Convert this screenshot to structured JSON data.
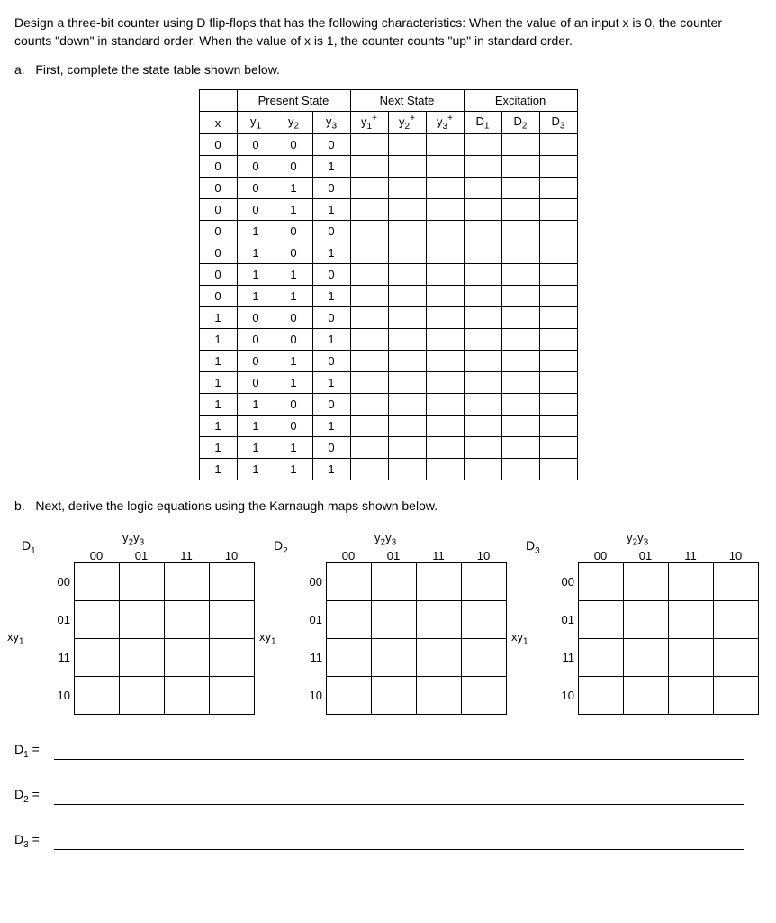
{
  "problem": {
    "text": "Design a three-bit counter using D flip-flops that has the following characteristics: When the value of an input x is 0, the counter counts \"down\" in standard order. When the value of x is 1, the counter counts \"up\" in standard order."
  },
  "partA": {
    "label": "a.",
    "text": "First, complete the state table shown below."
  },
  "stateTable": {
    "groupHeaders": [
      "",
      "Present State",
      "Next State",
      "Excitation"
    ],
    "columns": [
      "x",
      "y₁",
      "y₂",
      "y₃",
      "y₁⁺",
      "y₂⁺",
      "y₃⁺",
      "D₁",
      "D₂",
      "D₃"
    ],
    "rows": [
      [
        "0",
        "0",
        "0",
        "0",
        "",
        "",
        "",
        "",
        "",
        ""
      ],
      [
        "0",
        "0",
        "0",
        "1",
        "",
        "",
        "",
        "",
        "",
        ""
      ],
      [
        "0",
        "0",
        "1",
        "0",
        "",
        "",
        "",
        "",
        "",
        ""
      ],
      [
        "0",
        "0",
        "1",
        "1",
        "",
        "",
        "",
        "",
        "",
        ""
      ],
      [
        "0",
        "1",
        "0",
        "0",
        "",
        "",
        "",
        "",
        "",
        ""
      ],
      [
        "0",
        "1",
        "0",
        "1",
        "",
        "",
        "",
        "",
        "",
        ""
      ],
      [
        "0",
        "1",
        "1",
        "0",
        "",
        "",
        "",
        "",
        "",
        ""
      ],
      [
        "0",
        "1",
        "1",
        "1",
        "",
        "",
        "",
        "",
        "",
        ""
      ],
      [
        "1",
        "0",
        "0",
        "0",
        "",
        "",
        "",
        "",
        "",
        ""
      ],
      [
        "1",
        "0",
        "0",
        "1",
        "",
        "",
        "",
        "",
        "",
        ""
      ],
      [
        "1",
        "0",
        "1",
        "0",
        "",
        "",
        "",
        "",
        "",
        ""
      ],
      [
        "1",
        "0",
        "1",
        "1",
        "",
        "",
        "",
        "",
        "",
        ""
      ],
      [
        "1",
        "1",
        "0",
        "0",
        "",
        "",
        "",
        "",
        "",
        ""
      ],
      [
        "1",
        "1",
        "0",
        "1",
        "",
        "",
        "",
        "",
        "",
        ""
      ],
      [
        "1",
        "1",
        "1",
        "0",
        "",
        "",
        "",
        "",
        "",
        ""
      ],
      [
        "1",
        "1",
        "1",
        "1",
        "",
        "",
        "",
        "",
        "",
        ""
      ]
    ]
  },
  "partB": {
    "label": "b.",
    "text": "Next, derive the logic equations using the Karnaugh maps shown below."
  },
  "kmaps": {
    "colVar": "y₂y₃",
    "rowVar": "xy₁",
    "colLabels": [
      "00",
      "01",
      "11",
      "10"
    ],
    "rowLabels": [
      "00",
      "01",
      "11",
      "10"
    ],
    "maps": [
      {
        "name": "D₁"
      },
      {
        "name": "D₂"
      },
      {
        "name": "D₃"
      }
    ]
  },
  "equations": [
    {
      "label": "D₁ ="
    },
    {
      "label": "D₂ ="
    },
    {
      "label": "D₃ ="
    }
  ],
  "style": {
    "background_color": "#ffffff",
    "text_color": "#000000",
    "border_color": "#000000",
    "font_family": "Arial, sans-serif",
    "base_fontsize": 14,
    "table_cell_width": 42,
    "table_cell_height": 24,
    "kmap_cell_width": 50,
    "kmap_cell_height": 42
  }
}
